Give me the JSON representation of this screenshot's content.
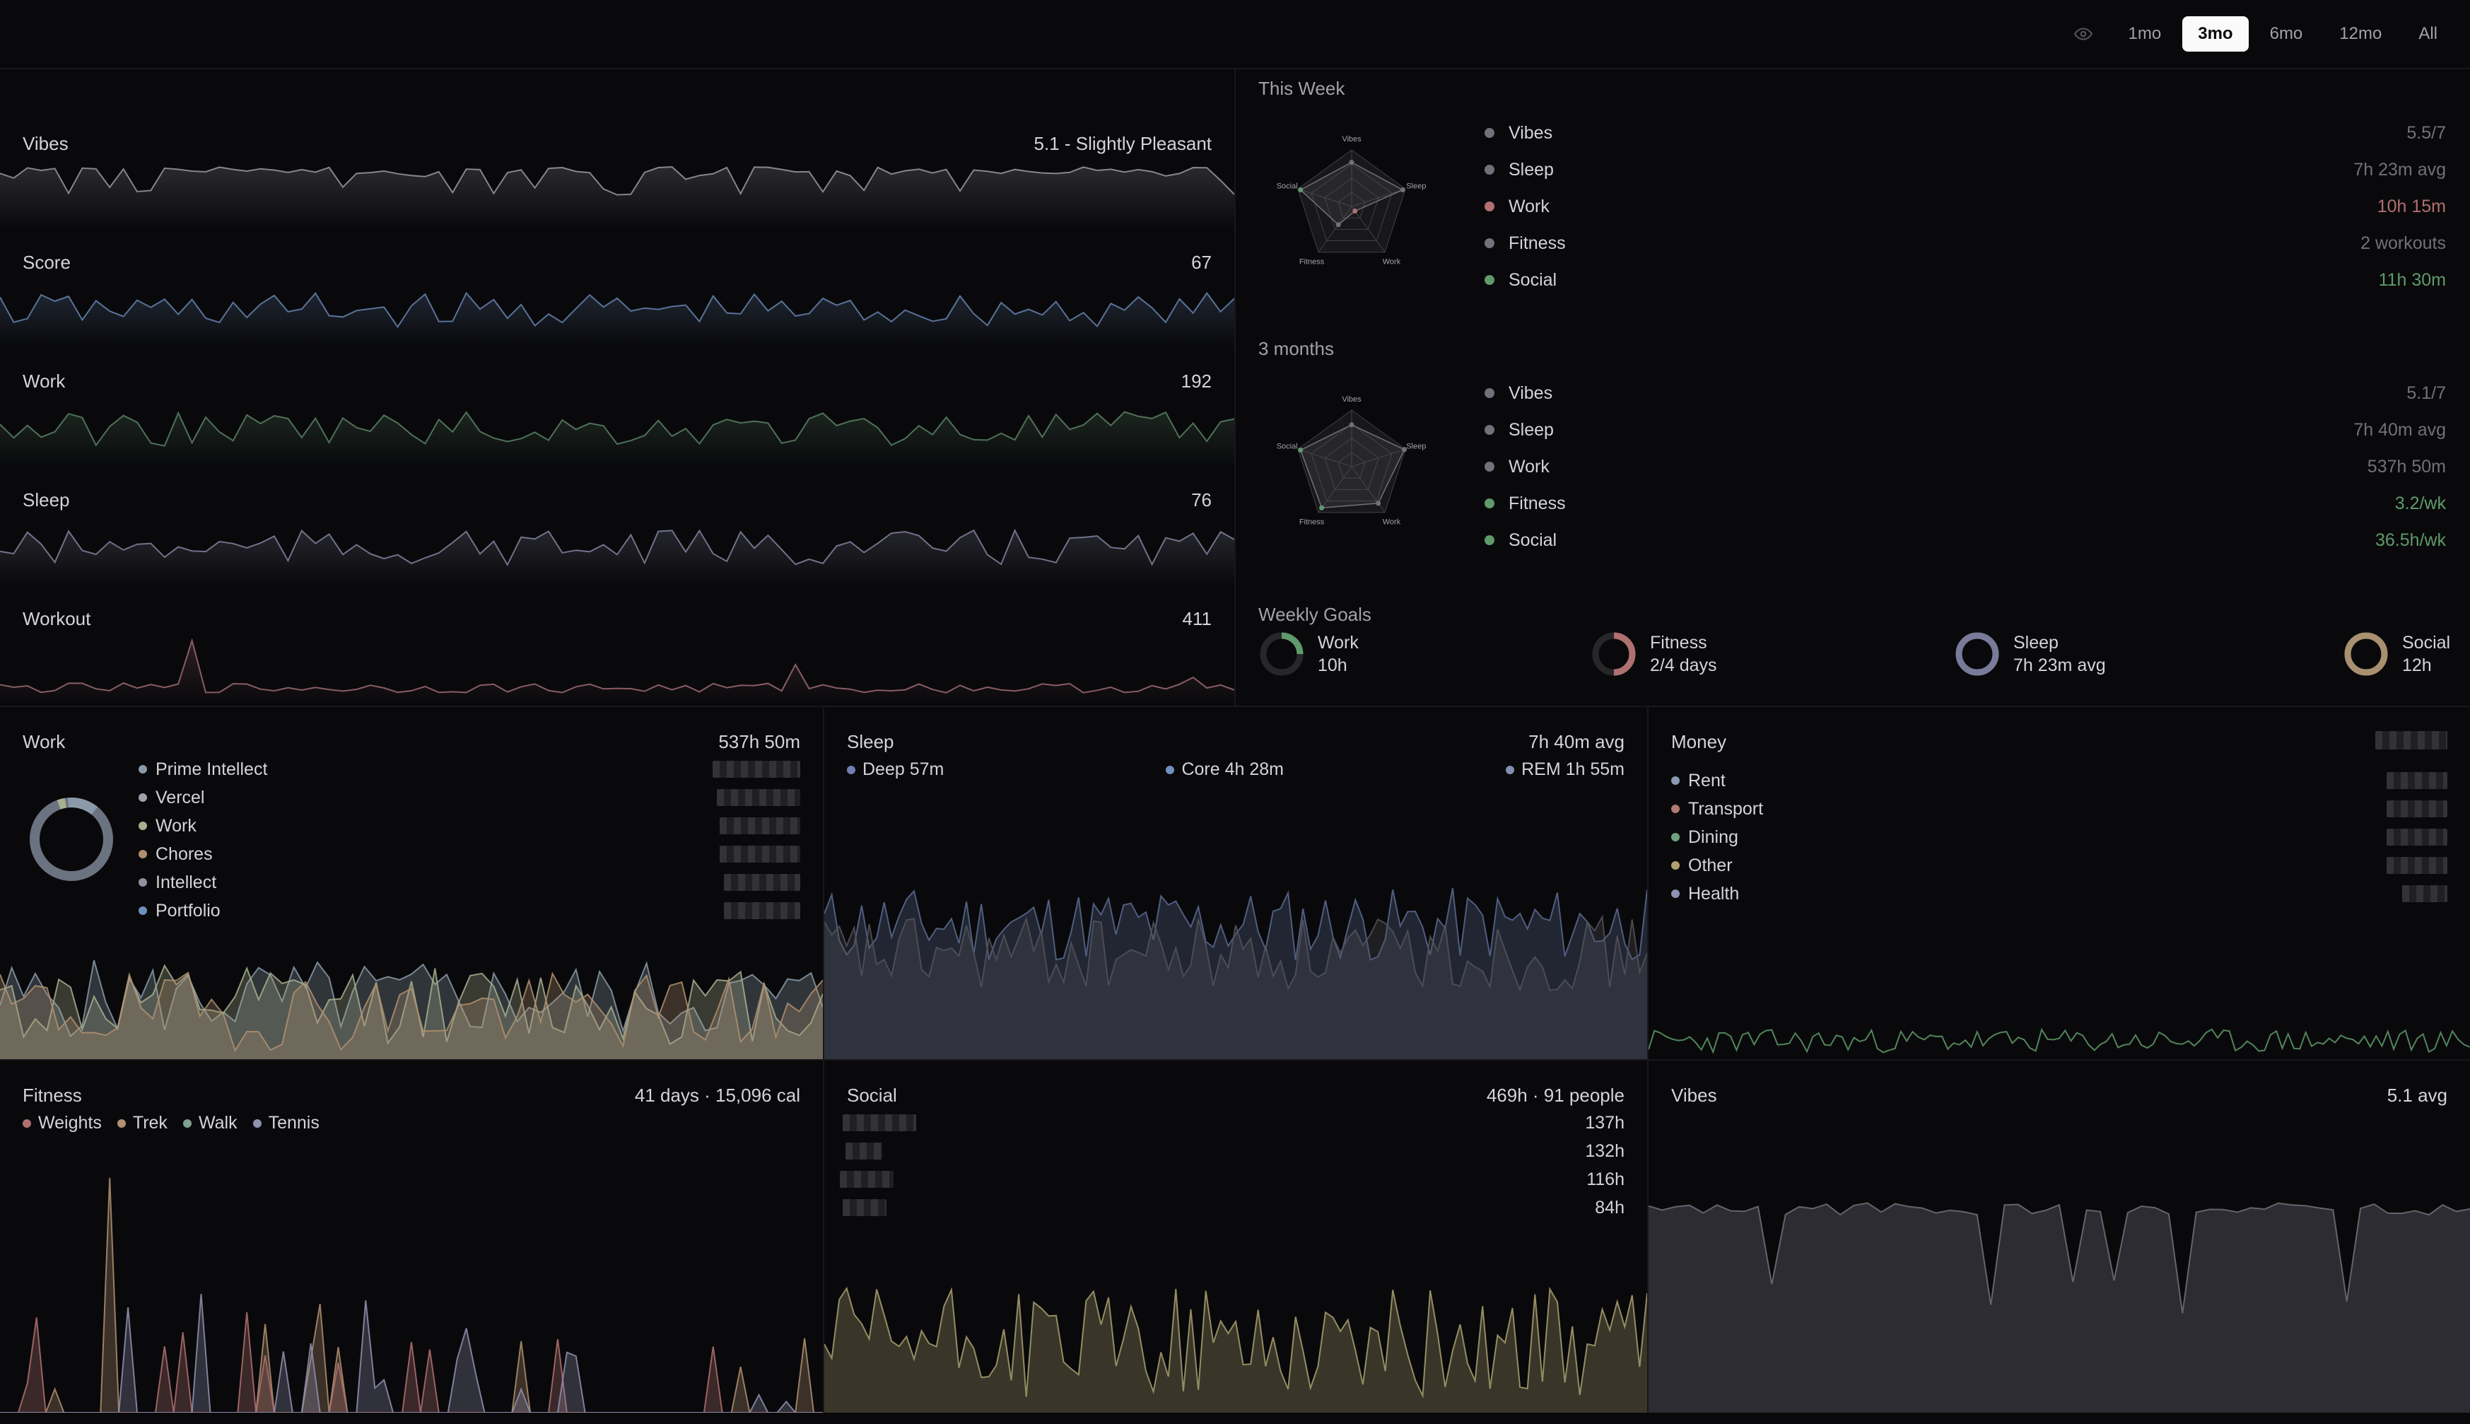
{
  "range_tabs": {
    "items": [
      "1mo",
      "3mo",
      "6mo",
      "12mo",
      "All"
    ],
    "active": "3mo"
  },
  "sparklines": [
    {
      "label": "Vibes",
      "value": "5.1 - Slightly Pleasant",
      "color": "#a1a1aa"
    },
    {
      "label": "Score",
      "value": "67",
      "color": "#6b8bb8"
    },
    {
      "label": "Work",
      "value": "192",
      "color": "#5f8a6a"
    },
    {
      "label": "Sleep",
      "value": "76",
      "color": "#8a8aa8"
    },
    {
      "label": "Workout",
      "value": "411",
      "color": "#a8707a"
    }
  ],
  "summary": {
    "this_week": {
      "title": "This Week",
      "radar_labels": [
        "Vibes",
        "Sleep",
        "Work",
        "Fitness",
        "Social"
      ],
      "metrics": [
        {
          "name": "Vibes",
          "value": "5.5/7",
          "color": "#71717a",
          "value_color": "#71717a"
        },
        {
          "name": "Sleep",
          "value": "7h 23m avg",
          "color": "#71717a",
          "value_color": "#71717a"
        },
        {
          "name": "Work",
          "value": "10h 15m",
          "color": "#b07070",
          "value_color": "#b07070"
        },
        {
          "name": "Fitness",
          "value": "2 workouts",
          "color": "#71717a",
          "value_color": "#71717a"
        },
        {
          "name": "Social",
          "value": "11h 30m",
          "color": "#5f9a6a",
          "value_color": "#5f9a6a"
        }
      ]
    },
    "three_months": {
      "title": "3 months",
      "radar_labels": [
        "Vibes",
        "Sleep",
        "Work",
        "Fitness",
        "Social"
      ],
      "metrics": [
        {
          "name": "Vibes",
          "value": "5.1/7",
          "color": "#71717a",
          "value_color": "#71717a"
        },
        {
          "name": "Sleep",
          "value": "7h 40m avg",
          "color": "#71717a",
          "value_color": "#71717a"
        },
        {
          "name": "Work",
          "value": "537h 50m",
          "color": "#71717a",
          "value_color": "#71717a"
        },
        {
          "name": "Fitness",
          "value": "3.2/wk",
          "color": "#5f9a6a",
          "value_color": "#5f9a6a"
        },
        {
          "name": "Social",
          "value": "36.5h/wk",
          "color": "#5f9a6a",
          "value_color": "#5f9a6a"
        }
      ]
    },
    "weekly_goals": {
      "title": "Weekly Goals",
      "goals": [
        {
          "name": "Work",
          "value": "10h",
          "progress": 0.25,
          "color": "#5f9a6a"
        },
        {
          "name": "Fitness",
          "value": "2/4 days",
          "progress": 0.5,
          "color": "#b07070"
        },
        {
          "name": "Sleep",
          "value": "7h 23m avg",
          "progress": 1.0,
          "color": "#7a7a9a"
        },
        {
          "name": "Social",
          "value": "12h",
          "progress": 1.0,
          "color": "#a89070"
        }
      ]
    }
  },
  "cards": {
    "work": {
      "title": "Work",
      "value": "537h 50m",
      "legend": [
        {
          "name": "Prime Intellect",
          "color": "#8a9aa8"
        },
        {
          "name": "Vercel",
          "color": "#a1a1aa"
        },
        {
          "name": "Work",
          "color": "#a8b090"
        },
        {
          "name": "Chores",
          "color": "#b09070"
        },
        {
          "name": "Intellect",
          "color": "#9090a0"
        },
        {
          "name": "Portfolio",
          "color": "#7090c0"
        }
      ]
    },
    "sleep": {
      "title": "Sleep",
      "value": "7h 40m avg",
      "legend": [
        {
          "name": "Deep 57m",
          "color": "#7080b0"
        },
        {
          "name": "Core 4h 28m",
          "color": "#7090c0"
        },
        {
          "name": "REM 1h 55m",
          "color": "#8090b0"
        }
      ]
    },
    "money": {
      "title": "Money",
      "legend": [
        {
          "name": "Rent",
          "color": "#8a9ab0"
        },
        {
          "name": "Transport",
          "color": "#b07a70"
        },
        {
          "name": "Dining",
          "color": "#70a080"
        },
        {
          "name": "Other",
          "color": "#b0a070"
        },
        {
          "name": "Health",
          "color": "#9090b0"
        }
      ]
    },
    "fitness": {
      "title": "Fitness",
      "value": "41 days · 15,096 cal",
      "legend": [
        {
          "name": "Weights",
          "color": "#b07070"
        },
        {
          "name": "Trek",
          "color": "#b09070"
        },
        {
          "name": "Walk",
          "color": "#80a090"
        },
        {
          "name": "Tennis",
          "color": "#9090b0"
        }
      ]
    },
    "social": {
      "title": "Social",
      "value": "469h · 91 people",
      "values": [
        "137h",
        "132h",
        "116h",
        "84h"
      ]
    },
    "vibes": {
      "title": "Vibes",
      "value": "5.1 avg"
    }
  }
}
